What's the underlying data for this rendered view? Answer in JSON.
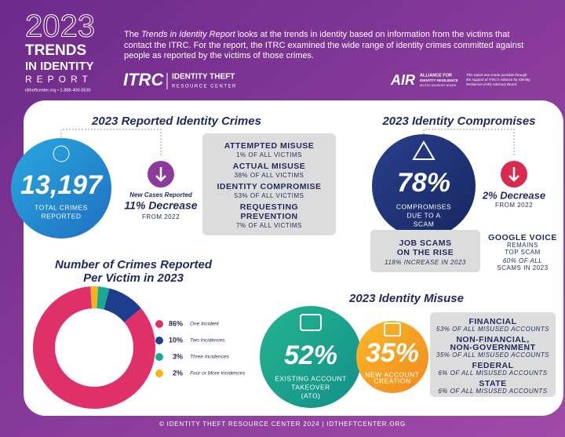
{
  "header": {
    "year": "2023",
    "title_line1": "TRENDS",
    "title_line2": "IN IDENTITY",
    "title_line3": "REPORT",
    "contact": "idtheftcenter.org • 1-888-400-5530",
    "intro_before": "The",
    "intro_italic": "Trends in Identity Report",
    "intro_after": "looks at the trends in identity based on information from the victims that contact the ITRC. For the report, the ITRC examined the wide range of identity crimes committed against people as reported by the victims of those crimes.",
    "itrc_logo": "ITRC",
    "itrc_name": "IDENTITY THEFT",
    "itrc_name2": "RESOURCE CENTER",
    "air_logo": "AIR",
    "air_name": "ALLIANCE FOR",
    "air_name2": "IDENTITY RESILIENCE",
    "air_name3": "AN ITRC ADVISORY BOARD",
    "air_note": [
      "This report was made possible through",
      "the support of ITRC's Alliance for Identity",
      "Resilience (AIR) Advisory Board."
    ]
  },
  "reported_crimes": {
    "title": "2023 Reported Identity Crimes",
    "total": "13,197",
    "total_label": [
      "TOTAL CRIMES",
      "REPORTED"
    ],
    "change_label": "New Cases Reported",
    "change": "11% Decrease",
    "change_from": "FROM 2022",
    "items": [
      {
        "name": "ATTEMPTED MISUSE",
        "detail": "1% OF ALL VICTIMS"
      },
      {
        "name": "ACTUAL MISUSE",
        "detail": "38% OF ALL VICTIMS"
      },
      {
        "name": "IDENTITY COMPROMISE",
        "detail": "53% OF ALL VICTIMS"
      },
      {
        "name": "REQUESTING",
        "name2": "PREVENTION",
        "detail": "7% OF ALL VICTIMS"
      }
    ]
  },
  "compromises": {
    "title": "2023 Identity Compromises",
    "percent": "78%",
    "percent_label": [
      "COMPROMISES",
      "DUE TO A",
      "SCAM"
    ],
    "change": "2% Decrease",
    "change_from": "FROM 2022",
    "job_scams": [
      "JOB SCAMS",
      "ON THE RISE"
    ],
    "job_scams_detail": "118% INCREASE IN 2023",
    "google_voice": [
      "GOOGLE VOICE",
      "REMAINS",
      "TOP SCAM"
    ],
    "google_voice_detail": [
      "60% OF ALL",
      "SCAMS IN 2023"
    ]
  },
  "per_victim": {
    "title": [
      "Number of Crimes Reported",
      "Per Victim in 2023"
    ],
    "categories": [
      "One Incident",
      "Two Incidences",
      "Three Incidences",
      "Four or More Incidences"
    ],
    "values": [
      86,
      10,
      3,
      2
    ],
    "value_labels": [
      "86%",
      "10%",
      "3%",
      "2%"
    ],
    "colors": [
      "#e0306a",
      "#1d3d8f",
      "#1aa893",
      "#f5b51a"
    ]
  },
  "misuse": {
    "title": "2023 Identity Misuse",
    "ato": "52%",
    "ato_label": [
      "EXISTING ACCOUNT",
      "TAKEOVER",
      "(ATO)"
    ],
    "new_account": "35%",
    "new_account_label": [
      "NEW ACCOUNT",
      "CREATION"
    ],
    "items": [
      {
        "name": "FINANCIAL",
        "detail": "53% OF ALL MISUSED ACCOUNTS"
      },
      {
        "name": "NON-FINANCIAL,",
        "name2": "NON-GOVERNMENT",
        "detail": "35% OF ALL MISUSED ACCOUNTS"
      },
      {
        "name": "FEDERAL",
        "detail": "6% OF ALL MISUSED ACCOUNTS"
      },
      {
        "name": "STATE",
        "detail": "6% OF ALL MISUSED ACCOUNTS"
      }
    ]
  },
  "footer": "© IDENTITY THEFT RESOURCE CENTER 2024  |  IDTHEFTCENTER.ORG"
}
